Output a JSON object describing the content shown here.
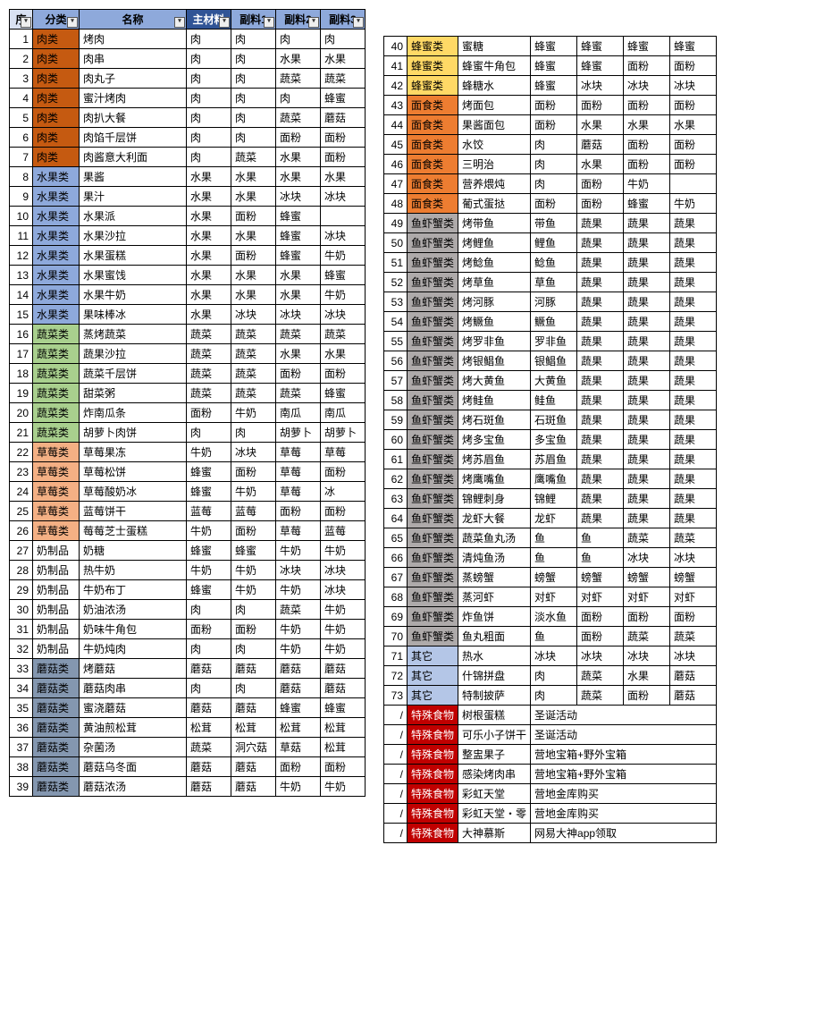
{
  "headers": {
    "idx": "序",
    "cat": "分类",
    "name": "名称",
    "main": "主材料",
    "sub1": "副料1",
    "sub2": "副料2",
    "sub3": "副料3"
  },
  "cat_colors": {
    "肉类": "#c55a11",
    "水果类": "#8ea9db",
    "蔬菜类": "#a9d08e",
    "草莓类": "#f4b084",
    "奶制品": "#ffffff",
    "蘑菇类": "#8497b0",
    "蜂蜜类": "#ffd966",
    "面食类": "#ed7d31",
    "鱼虾蟹类": "#aeaaaa",
    "其它": "#b4c6e7",
    "特殊食物": "#c00000"
  },
  "rows": [
    {
      "n": 1,
      "cat": "肉类",
      "name": "烤肉",
      "i": [
        "肉",
        "肉",
        "肉",
        "肉"
      ]
    },
    {
      "n": 2,
      "cat": "肉类",
      "name": "肉串",
      "i": [
        "肉",
        "肉",
        "水果",
        "水果"
      ]
    },
    {
      "n": 3,
      "cat": "肉类",
      "name": "肉丸子",
      "i": [
        "肉",
        "肉",
        "蔬菜",
        "蔬菜"
      ]
    },
    {
      "n": 4,
      "cat": "肉类",
      "name": "蜜汁烤肉",
      "i": [
        "肉",
        "肉",
        "肉",
        "蜂蜜"
      ]
    },
    {
      "n": 5,
      "cat": "肉类",
      "name": "肉扒大餐",
      "i": [
        "肉",
        "肉",
        "蔬菜",
        "蘑菇"
      ]
    },
    {
      "n": 6,
      "cat": "肉类",
      "name": "肉馅千层饼",
      "i": [
        "肉",
        "肉",
        "面粉",
        "面粉"
      ]
    },
    {
      "n": 7,
      "cat": "肉类",
      "name": "肉酱意大利面",
      "i": [
        "肉",
        "蔬菜",
        "水果",
        "面粉"
      ]
    },
    {
      "n": 8,
      "cat": "水果类",
      "name": "果酱",
      "i": [
        "水果",
        "水果",
        "水果",
        "水果"
      ]
    },
    {
      "n": 9,
      "cat": "水果类",
      "name": "果汁",
      "i": [
        "水果",
        "水果",
        "冰块",
        "冰块"
      ]
    },
    {
      "n": 10,
      "cat": "水果类",
      "name": "水果派",
      "i": [
        "水果",
        "面粉",
        "蜂蜜",
        ""
      ]
    },
    {
      "n": 11,
      "cat": "水果类",
      "name": "水果沙拉",
      "i": [
        "水果",
        "水果",
        "蜂蜜",
        "冰块"
      ]
    },
    {
      "n": 12,
      "cat": "水果类",
      "name": "水果蛋糕",
      "i": [
        "水果",
        "面粉",
        "蜂蜜",
        "牛奶"
      ]
    },
    {
      "n": 13,
      "cat": "水果类",
      "name": "水果蜜饯",
      "i": [
        "水果",
        "水果",
        "水果",
        "蜂蜜"
      ]
    },
    {
      "n": 14,
      "cat": "水果类",
      "name": "水果牛奶",
      "i": [
        "水果",
        "水果",
        "水果",
        "牛奶"
      ]
    },
    {
      "n": 15,
      "cat": "水果类",
      "name": "果味棒冰",
      "i": [
        "水果",
        "冰块",
        "冰块",
        "冰块"
      ]
    },
    {
      "n": 16,
      "cat": "蔬菜类",
      "name": "蒸烤蔬菜",
      "i": [
        "蔬菜",
        "蔬菜",
        "蔬菜",
        "蔬菜"
      ]
    },
    {
      "n": 17,
      "cat": "蔬菜类",
      "name": "蔬果沙拉",
      "i": [
        "蔬菜",
        "蔬菜",
        "水果",
        "水果"
      ]
    },
    {
      "n": 18,
      "cat": "蔬菜类",
      "name": "蔬菜千层饼",
      "i": [
        "蔬菜",
        "蔬菜",
        "面粉",
        "面粉"
      ]
    },
    {
      "n": 19,
      "cat": "蔬菜类",
      "name": "甜菜粥",
      "i": [
        "蔬菜",
        "蔬菜",
        "蔬菜",
        "蜂蜜"
      ]
    },
    {
      "n": 20,
      "cat": "蔬菜类",
      "name": "炸南瓜条",
      "i": [
        "面粉",
        "牛奶",
        "南瓜",
        "南瓜"
      ]
    },
    {
      "n": 21,
      "cat": "蔬菜类",
      "name": "胡萝卜肉饼",
      "i": [
        "肉",
        "肉",
        "胡萝卜",
        "胡萝卜"
      ]
    },
    {
      "n": 22,
      "cat": "草莓类",
      "name": "草莓果冻",
      "i": [
        "牛奶",
        "冰块",
        "草莓",
        "草莓"
      ]
    },
    {
      "n": 23,
      "cat": "草莓类",
      "name": "草莓松饼",
      "i": [
        "蜂蜜",
        "面粉",
        "草莓",
        "面粉"
      ]
    },
    {
      "n": 24,
      "cat": "草莓类",
      "name": "草莓酸奶冰",
      "i": [
        "蜂蜜",
        "牛奶",
        "草莓",
        "冰"
      ]
    },
    {
      "n": 25,
      "cat": "草莓类",
      "name": "蓝莓饼干",
      "i": [
        "蓝莓",
        "蓝莓",
        "面粉",
        "面粉"
      ]
    },
    {
      "n": 26,
      "cat": "草莓类",
      "name": "莓莓芝士蛋糕",
      "i": [
        "牛奶",
        "面粉",
        "草莓",
        "蓝莓"
      ]
    },
    {
      "n": 27,
      "cat": "奶制品",
      "name": "奶糖",
      "i": [
        "蜂蜜",
        "蜂蜜",
        "牛奶",
        "牛奶"
      ]
    },
    {
      "n": 28,
      "cat": "奶制品",
      "name": "热牛奶",
      "i": [
        "牛奶",
        "牛奶",
        "冰块",
        "冰块"
      ]
    },
    {
      "n": 29,
      "cat": "奶制品",
      "name": "牛奶布丁",
      "i": [
        "蜂蜜",
        "牛奶",
        "牛奶",
        "冰块"
      ]
    },
    {
      "n": 30,
      "cat": "奶制品",
      "name": "奶油浓汤",
      "i": [
        "肉",
        "肉",
        "蔬菜",
        "牛奶"
      ]
    },
    {
      "n": 31,
      "cat": "奶制品",
      "name": "奶味牛角包",
      "i": [
        "面粉",
        "面粉",
        "牛奶",
        "牛奶"
      ]
    },
    {
      "n": 32,
      "cat": "奶制品",
      "name": "牛奶炖肉",
      "i": [
        "肉",
        "肉",
        "牛奶",
        "牛奶"
      ]
    },
    {
      "n": 33,
      "cat": "蘑菇类",
      "name": "烤蘑菇",
      "i": [
        "蘑菇",
        "蘑菇",
        "蘑菇",
        "蘑菇"
      ]
    },
    {
      "n": 34,
      "cat": "蘑菇类",
      "name": "蘑菇肉串",
      "i": [
        "肉",
        "肉",
        "蘑菇",
        "蘑菇"
      ]
    },
    {
      "n": 35,
      "cat": "蘑菇类",
      "name": "蜜浇蘑菇",
      "i": [
        "蘑菇",
        "蘑菇",
        "蜂蜜",
        "蜂蜜"
      ]
    },
    {
      "n": 36,
      "cat": "蘑菇类",
      "name": "黄油煎松茸",
      "i": [
        "松茸",
        "松茸",
        "松茸",
        "松茸"
      ]
    },
    {
      "n": 37,
      "cat": "蘑菇类",
      "name": "杂菌汤",
      "i": [
        "蔬菜",
        "洞穴菇",
        "草菇",
        "松茸"
      ]
    },
    {
      "n": 38,
      "cat": "蘑菇类",
      "name": "蘑菇乌冬面",
      "i": [
        "蘑菇",
        "蘑菇",
        "面粉",
        "面粉"
      ]
    },
    {
      "n": 39,
      "cat": "蘑菇类",
      "name": "蘑菇浓汤",
      "i": [
        "蘑菇",
        "蘑菇",
        "牛奶",
        "牛奶"
      ]
    }
  ],
  "rows2": [
    {
      "n": 40,
      "cat": "蜂蜜类",
      "name": "蜜糖",
      "i": [
        "蜂蜜",
        "蜂蜜",
        "蜂蜜",
        "蜂蜜"
      ]
    },
    {
      "n": 41,
      "cat": "蜂蜜类",
      "name": "蜂蜜牛角包",
      "i": [
        "蜂蜜",
        "蜂蜜",
        "面粉",
        "面粉"
      ]
    },
    {
      "n": 42,
      "cat": "蜂蜜类",
      "name": "蜂糖水",
      "i": [
        "蜂蜜",
        "冰块",
        "冰块",
        "冰块"
      ]
    },
    {
      "n": 43,
      "cat": "面食类",
      "name": "烤面包",
      "i": [
        "面粉",
        "面粉",
        "面粉",
        "面粉"
      ]
    },
    {
      "n": 44,
      "cat": "面食类",
      "name": "果酱面包",
      "i": [
        "面粉",
        "水果",
        "水果",
        "水果"
      ]
    },
    {
      "n": 45,
      "cat": "面食类",
      "name": "水饺",
      "i": [
        "肉",
        "蘑菇",
        "面粉",
        "面粉"
      ]
    },
    {
      "n": 46,
      "cat": "面食类",
      "name": "三明治",
      "i": [
        "肉",
        "水果",
        "面粉",
        "面粉"
      ]
    },
    {
      "n": 47,
      "cat": "面食类",
      "name": "营养煨炖",
      "i": [
        "肉",
        "面粉",
        "牛奶",
        ""
      ]
    },
    {
      "n": 48,
      "cat": "面食类",
      "name": "葡式蛋挞",
      "i": [
        "面粉",
        "面粉",
        "蜂蜜",
        "牛奶"
      ]
    },
    {
      "n": 49,
      "cat": "鱼虾蟹类",
      "name": "烤带鱼",
      "i": [
        "带鱼",
        "蔬果",
        "蔬果",
        "蔬果"
      ]
    },
    {
      "n": 50,
      "cat": "鱼虾蟹类",
      "name": "烤鲤鱼",
      "i": [
        "鲤鱼",
        "蔬果",
        "蔬果",
        "蔬果"
      ]
    },
    {
      "n": 51,
      "cat": "鱼虾蟹类",
      "name": "烤鲶鱼",
      "i": [
        "鲶鱼",
        "蔬果",
        "蔬果",
        "蔬果"
      ]
    },
    {
      "n": 52,
      "cat": "鱼虾蟹类",
      "name": "烤草鱼",
      "i": [
        "草鱼",
        "蔬果",
        "蔬果",
        "蔬果"
      ]
    },
    {
      "n": 53,
      "cat": "鱼虾蟹类",
      "name": "烤河豚",
      "i": [
        "河豚",
        "蔬果",
        "蔬果",
        "蔬果"
      ]
    },
    {
      "n": 54,
      "cat": "鱼虾蟹类",
      "name": "烤鳜鱼",
      "i": [
        "鳜鱼",
        "蔬果",
        "蔬果",
        "蔬果"
      ]
    },
    {
      "n": 55,
      "cat": "鱼虾蟹类",
      "name": "烤罗非鱼",
      "i": [
        "罗非鱼",
        "蔬果",
        "蔬果",
        "蔬果"
      ]
    },
    {
      "n": 56,
      "cat": "鱼虾蟹类",
      "name": "烤银鲳鱼",
      "i": [
        "银鲳鱼",
        "蔬果",
        "蔬果",
        "蔬果"
      ]
    },
    {
      "n": 57,
      "cat": "鱼虾蟹类",
      "name": "烤大黄鱼",
      "i": [
        "大黄鱼",
        "蔬果",
        "蔬果",
        "蔬果"
      ]
    },
    {
      "n": 58,
      "cat": "鱼虾蟹类",
      "name": "烤鲑鱼",
      "i": [
        "鲑鱼",
        "蔬果",
        "蔬果",
        "蔬果"
      ]
    },
    {
      "n": 59,
      "cat": "鱼虾蟹类",
      "name": "烤石斑鱼",
      "i": [
        "石斑鱼",
        "蔬果",
        "蔬果",
        "蔬果"
      ]
    },
    {
      "n": 60,
      "cat": "鱼虾蟹类",
      "name": "烤多宝鱼",
      "i": [
        "多宝鱼",
        "蔬果",
        "蔬果",
        "蔬果"
      ]
    },
    {
      "n": 61,
      "cat": "鱼虾蟹类",
      "name": "烤苏眉鱼",
      "i": [
        "苏眉鱼",
        "蔬果",
        "蔬果",
        "蔬果"
      ]
    },
    {
      "n": 62,
      "cat": "鱼虾蟹类",
      "name": "烤鹰嘴鱼",
      "i": [
        "鹰嘴鱼",
        "蔬果",
        "蔬果",
        "蔬果"
      ]
    },
    {
      "n": 63,
      "cat": "鱼虾蟹类",
      "name": "锦鲤刺身",
      "i": [
        "锦鲤",
        "蔬果",
        "蔬果",
        "蔬果"
      ]
    },
    {
      "n": 64,
      "cat": "鱼虾蟹类",
      "name": "龙虾大餐",
      "i": [
        "龙虾",
        "蔬果",
        "蔬果",
        "蔬果"
      ]
    },
    {
      "n": 65,
      "cat": "鱼虾蟹类",
      "name": "蔬菜鱼丸汤",
      "i": [
        "鱼",
        "鱼",
        "蔬菜",
        "蔬菜"
      ]
    },
    {
      "n": 66,
      "cat": "鱼虾蟹类",
      "name": "清炖鱼汤",
      "i": [
        "鱼",
        "鱼",
        "冰块",
        "冰块"
      ]
    },
    {
      "n": 67,
      "cat": "鱼虾蟹类",
      "name": "蒸螃蟹",
      "i": [
        "螃蟹",
        "螃蟹",
        "螃蟹",
        "螃蟹"
      ]
    },
    {
      "n": 68,
      "cat": "鱼虾蟹类",
      "name": "蒸河虾",
      "i": [
        "对虾",
        "对虾",
        "对虾",
        "对虾"
      ]
    },
    {
      "n": 69,
      "cat": "鱼虾蟹类",
      "name": "炸鱼饼",
      "i": [
        "淡水鱼",
        "面粉",
        "面粉",
        "面粉"
      ]
    },
    {
      "n": 70,
      "cat": "鱼虾蟹类",
      "name": "鱼丸粗面",
      "i": [
        "鱼",
        "面粉",
        "蔬菜",
        "蔬菜"
      ]
    },
    {
      "n": 71,
      "cat": "其它",
      "name": "热水",
      "i": [
        "冰块",
        "冰块",
        "冰块",
        "冰块"
      ]
    },
    {
      "n": 72,
      "cat": "其它",
      "name": "什锦拼盘",
      "i": [
        "肉",
        "蔬菜",
        "水果",
        "蘑菇"
      ]
    },
    {
      "n": 73,
      "cat": "其它",
      "name": "特制披萨",
      "i": [
        "肉",
        "蔬菜",
        "面粉",
        "蘑菇"
      ]
    }
  ],
  "specials": [
    {
      "cat": "特殊食物",
      "name": "树根蛋糕",
      "src": "圣诞活动"
    },
    {
      "cat": "特殊食物",
      "name": "可乐小子饼干",
      "src": "圣诞活动"
    },
    {
      "cat": "特殊食物",
      "name": "整盅果子",
      "src": "营地宝箱+野外宝箱"
    },
    {
      "cat": "特殊食物",
      "name": "感染烤肉串",
      "src": "营地宝箱+野外宝箱"
    },
    {
      "cat": "特殊食物",
      "name": "彩虹天堂",
      "src": "营地金库购买"
    },
    {
      "cat": "特殊食物",
      "name": "彩虹天堂・零",
      "src": "营地金库购买"
    },
    {
      "cat": "特殊食物",
      "name": "大神慕斯",
      "src": "网易大神app领取"
    }
  ],
  "slash": "/"
}
